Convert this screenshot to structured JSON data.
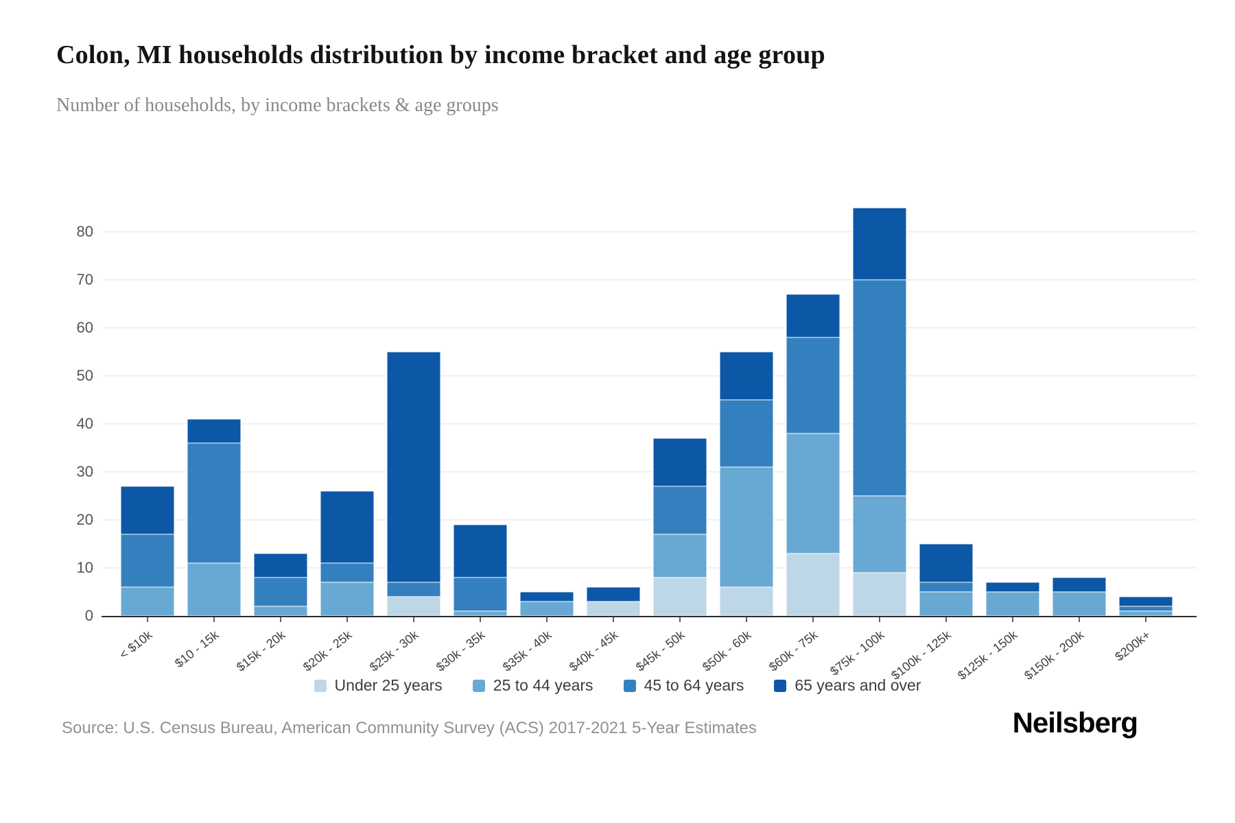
{
  "header": {
    "title": "Colon, MI households distribution by income bracket and age group",
    "subtitle": "Number of households, by income brackets & age groups"
  },
  "footer": {
    "source": "Source: U.S. Census Bureau, American Community Survey (ACS) 2017-2021 5-Year Estimates",
    "logo": "Neilsberg"
  },
  "colors": {
    "under25": "#bdd7e7",
    "age25to44": "#68a9d3",
    "age45to64": "#3480bf",
    "age65over": "#0d57a7",
    "gridline": "#ececec",
    "axis_line": "#2b2b2b",
    "y_tick_text": "#555555",
    "x_tick_text": "#3f3f3f"
  },
  "chart_data": {
    "type": "bar",
    "stacked": true,
    "title": "Colon, MI households distribution by income bracket and age group",
    "subtitle": "Number of households, by income brackets & age groups",
    "xlabel": "",
    "ylabel": "Number of households",
    "ylim": [
      0,
      85
    ],
    "y_ticks": [
      0,
      10,
      20,
      30,
      40,
      50,
      60,
      70,
      80
    ],
    "grid": true,
    "legend_position": "bottom",
    "categories": [
      "< $10k",
      "$10 - 15k",
      "$15k - 20k",
      "$20k - 25k",
      "$25k - 30k",
      "$30k - 35k",
      "$35k - 40k",
      "$40k - 45k",
      "$45k - 50k",
      "$50k - 60k",
      "$60k - 75k",
      "$75k - 100k",
      "$100k - 125k",
      "$125k - 150k",
      "$150k - 200k",
      "$200k+"
    ],
    "series": [
      {
        "name": "Under 25 years",
        "color": "#bdd7e7",
        "values": [
          0,
          0,
          0,
          0,
          4,
          0,
          0,
          3,
          8,
          6,
          13,
          9,
          0,
          0,
          0,
          0
        ]
      },
      {
        "name": "25 to 44 years",
        "color": "#68a9d3",
        "values": [
          6,
          11,
          2,
          7,
          0,
          1,
          3,
          0,
          9,
          25,
          25,
          16,
          5,
          5,
          5,
          1
        ]
      },
      {
        "name": "45 to 64 years",
        "color": "#3480bf",
        "values": [
          11,
          25,
          6,
          4,
          3,
          7,
          0,
          0,
          10,
          14,
          20,
          45,
          2,
          0,
          0,
          1
        ]
      },
      {
        "name": "65 years and over",
        "color": "#0d57a7",
        "values": [
          10,
          5,
          5,
          15,
          48,
          11,
          2,
          3,
          10,
          10,
          9,
          15,
          8,
          2,
          3,
          2
        ]
      }
    ],
    "totals": [
      27,
      41,
      13,
      26,
      55,
      19,
      5,
      6,
      37,
      55,
      67,
      85,
      15,
      7,
      8,
      4
    ]
  }
}
